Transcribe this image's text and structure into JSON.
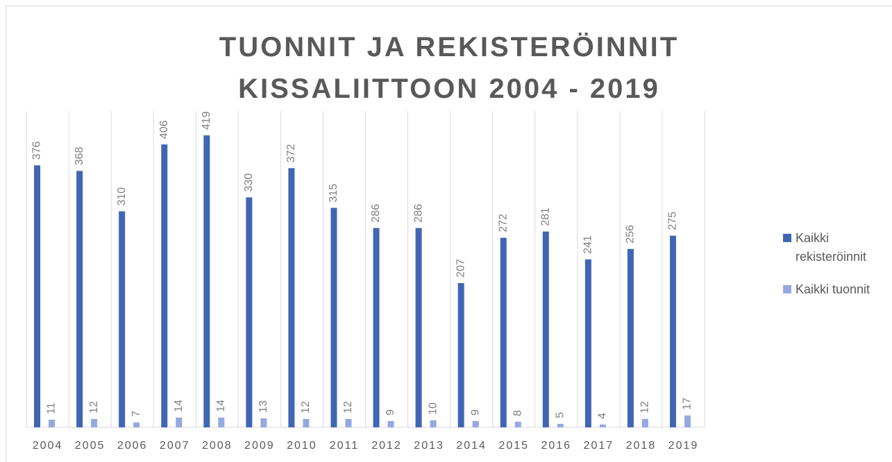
{
  "chart_data": {
    "type": "bar",
    "title": "TUONNIT JA REKISTERÖINNIT KISSALIITTOON 2004 - 2019",
    "categories": [
      "2004",
      "2005",
      "2006",
      "2007",
      "2008",
      "2009",
      "2010",
      "2011",
      "2012",
      "2013",
      "2014",
      "2015",
      "2016",
      "2017",
      "2018",
      "2019"
    ],
    "series": [
      {
        "name": "Kaikki rekisteröinnit",
        "color": "#4066b3",
        "values": [
          376,
          368,
          310,
          406,
          419,
          330,
          372,
          315,
          286,
          286,
          207,
          272,
          281,
          241,
          256,
          275
        ]
      },
      {
        "name": "Kaikki tuonnit",
        "color": "#95a9e0",
        "values": [
          11,
          12,
          7,
          14,
          14,
          13,
          12,
          12,
          9,
          10,
          9,
          8,
          5,
          4,
          12,
          17
        ]
      }
    ],
    "ylim": [
      0,
      450
    ],
    "legend": "right",
    "grid": true
  }
}
